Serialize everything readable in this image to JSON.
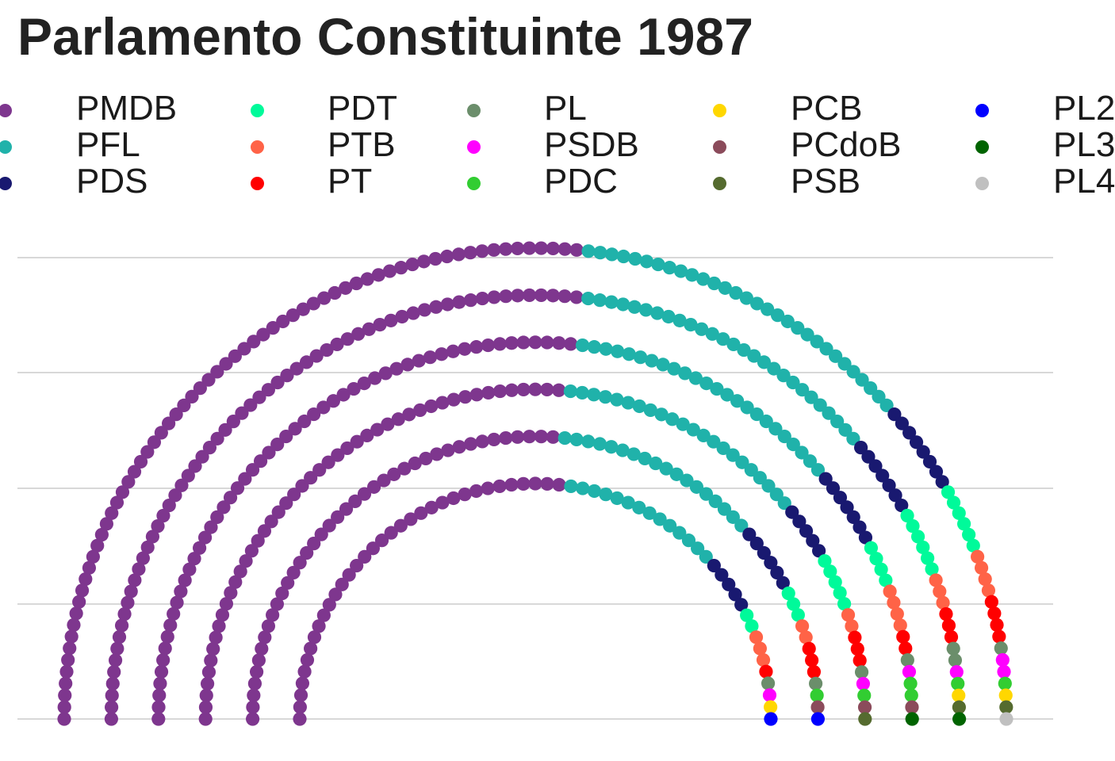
{
  "title": "Parlamento Constituinte 1987",
  "legend": [
    {
      "name": "PMDB",
      "color": "#7E368E"
    },
    {
      "name": "PFL",
      "color": "#20B2AA"
    },
    {
      "name": "PDS",
      "color": "#191970"
    },
    {
      "name": "PDT",
      "color": "#00FA9A"
    },
    {
      "name": "PTB",
      "color": "#FF6347"
    },
    {
      "name": "PT",
      "color": "#FF0000"
    },
    {
      "name": "PL",
      "color": "#6B8E6B"
    },
    {
      "name": "PSDB",
      "color": "#FF00FF"
    },
    {
      "name": "PDC",
      "color": "#32CD32"
    },
    {
      "name": "PCB",
      "color": "#FFD700"
    },
    {
      "name": "PCdoB",
      "color": "#8B4B5B"
    },
    {
      "name": "PSB",
      "color": "#556B2F"
    },
    {
      "name": "PL2",
      "color": "#0000FF"
    },
    {
      "name": "PL3",
      "color": "#006400"
    },
    {
      "name": "PL4",
      "color": "#C0C0C0"
    }
  ],
  "chart_data": {
    "type": "scatter",
    "subtype": "parliament",
    "title": "Parlamento Constituinte 1987",
    "rows": 6,
    "grid": "horizontal",
    "series": [
      {
        "name": "PMDB",
        "color": "#7E368E",
        "seats": 303
      },
      {
        "name": "PFL",
        "color": "#20B2AA",
        "seats": 135
      },
      {
        "name": "PDS",
        "color": "#191970",
        "seats": 38
      },
      {
        "name": "PDT",
        "color": "#00FA9A",
        "seats": 26
      },
      {
        "name": "PTB",
        "color": "#FF6347",
        "seats": 18
      },
      {
        "name": "PT",
        "color": "#FF0000",
        "seats": 16
      },
      {
        "name": "PL",
        "color": "#6B8E6B",
        "seats": 7
      },
      {
        "name": "PSDB",
        "color": "#FF00FF",
        "seats": 6
      },
      {
        "name": "PDC",
        "color": "#32CD32",
        "seats": 6
      },
      {
        "name": "PCB",
        "color": "#FFD700",
        "seats": 3
      },
      {
        "name": "PCdoB",
        "color": "#8B4B5B",
        "seats": 3
      },
      {
        "name": "PSB",
        "color": "#556B2F",
        "seats": 3
      },
      {
        "color": "#0000FF",
        "seats": 2
      },
      {
        "color": "#006400",
        "seats": 2
      },
      {
        "color": "#C0C0C0",
        "seats": 1
      }
    ]
  }
}
